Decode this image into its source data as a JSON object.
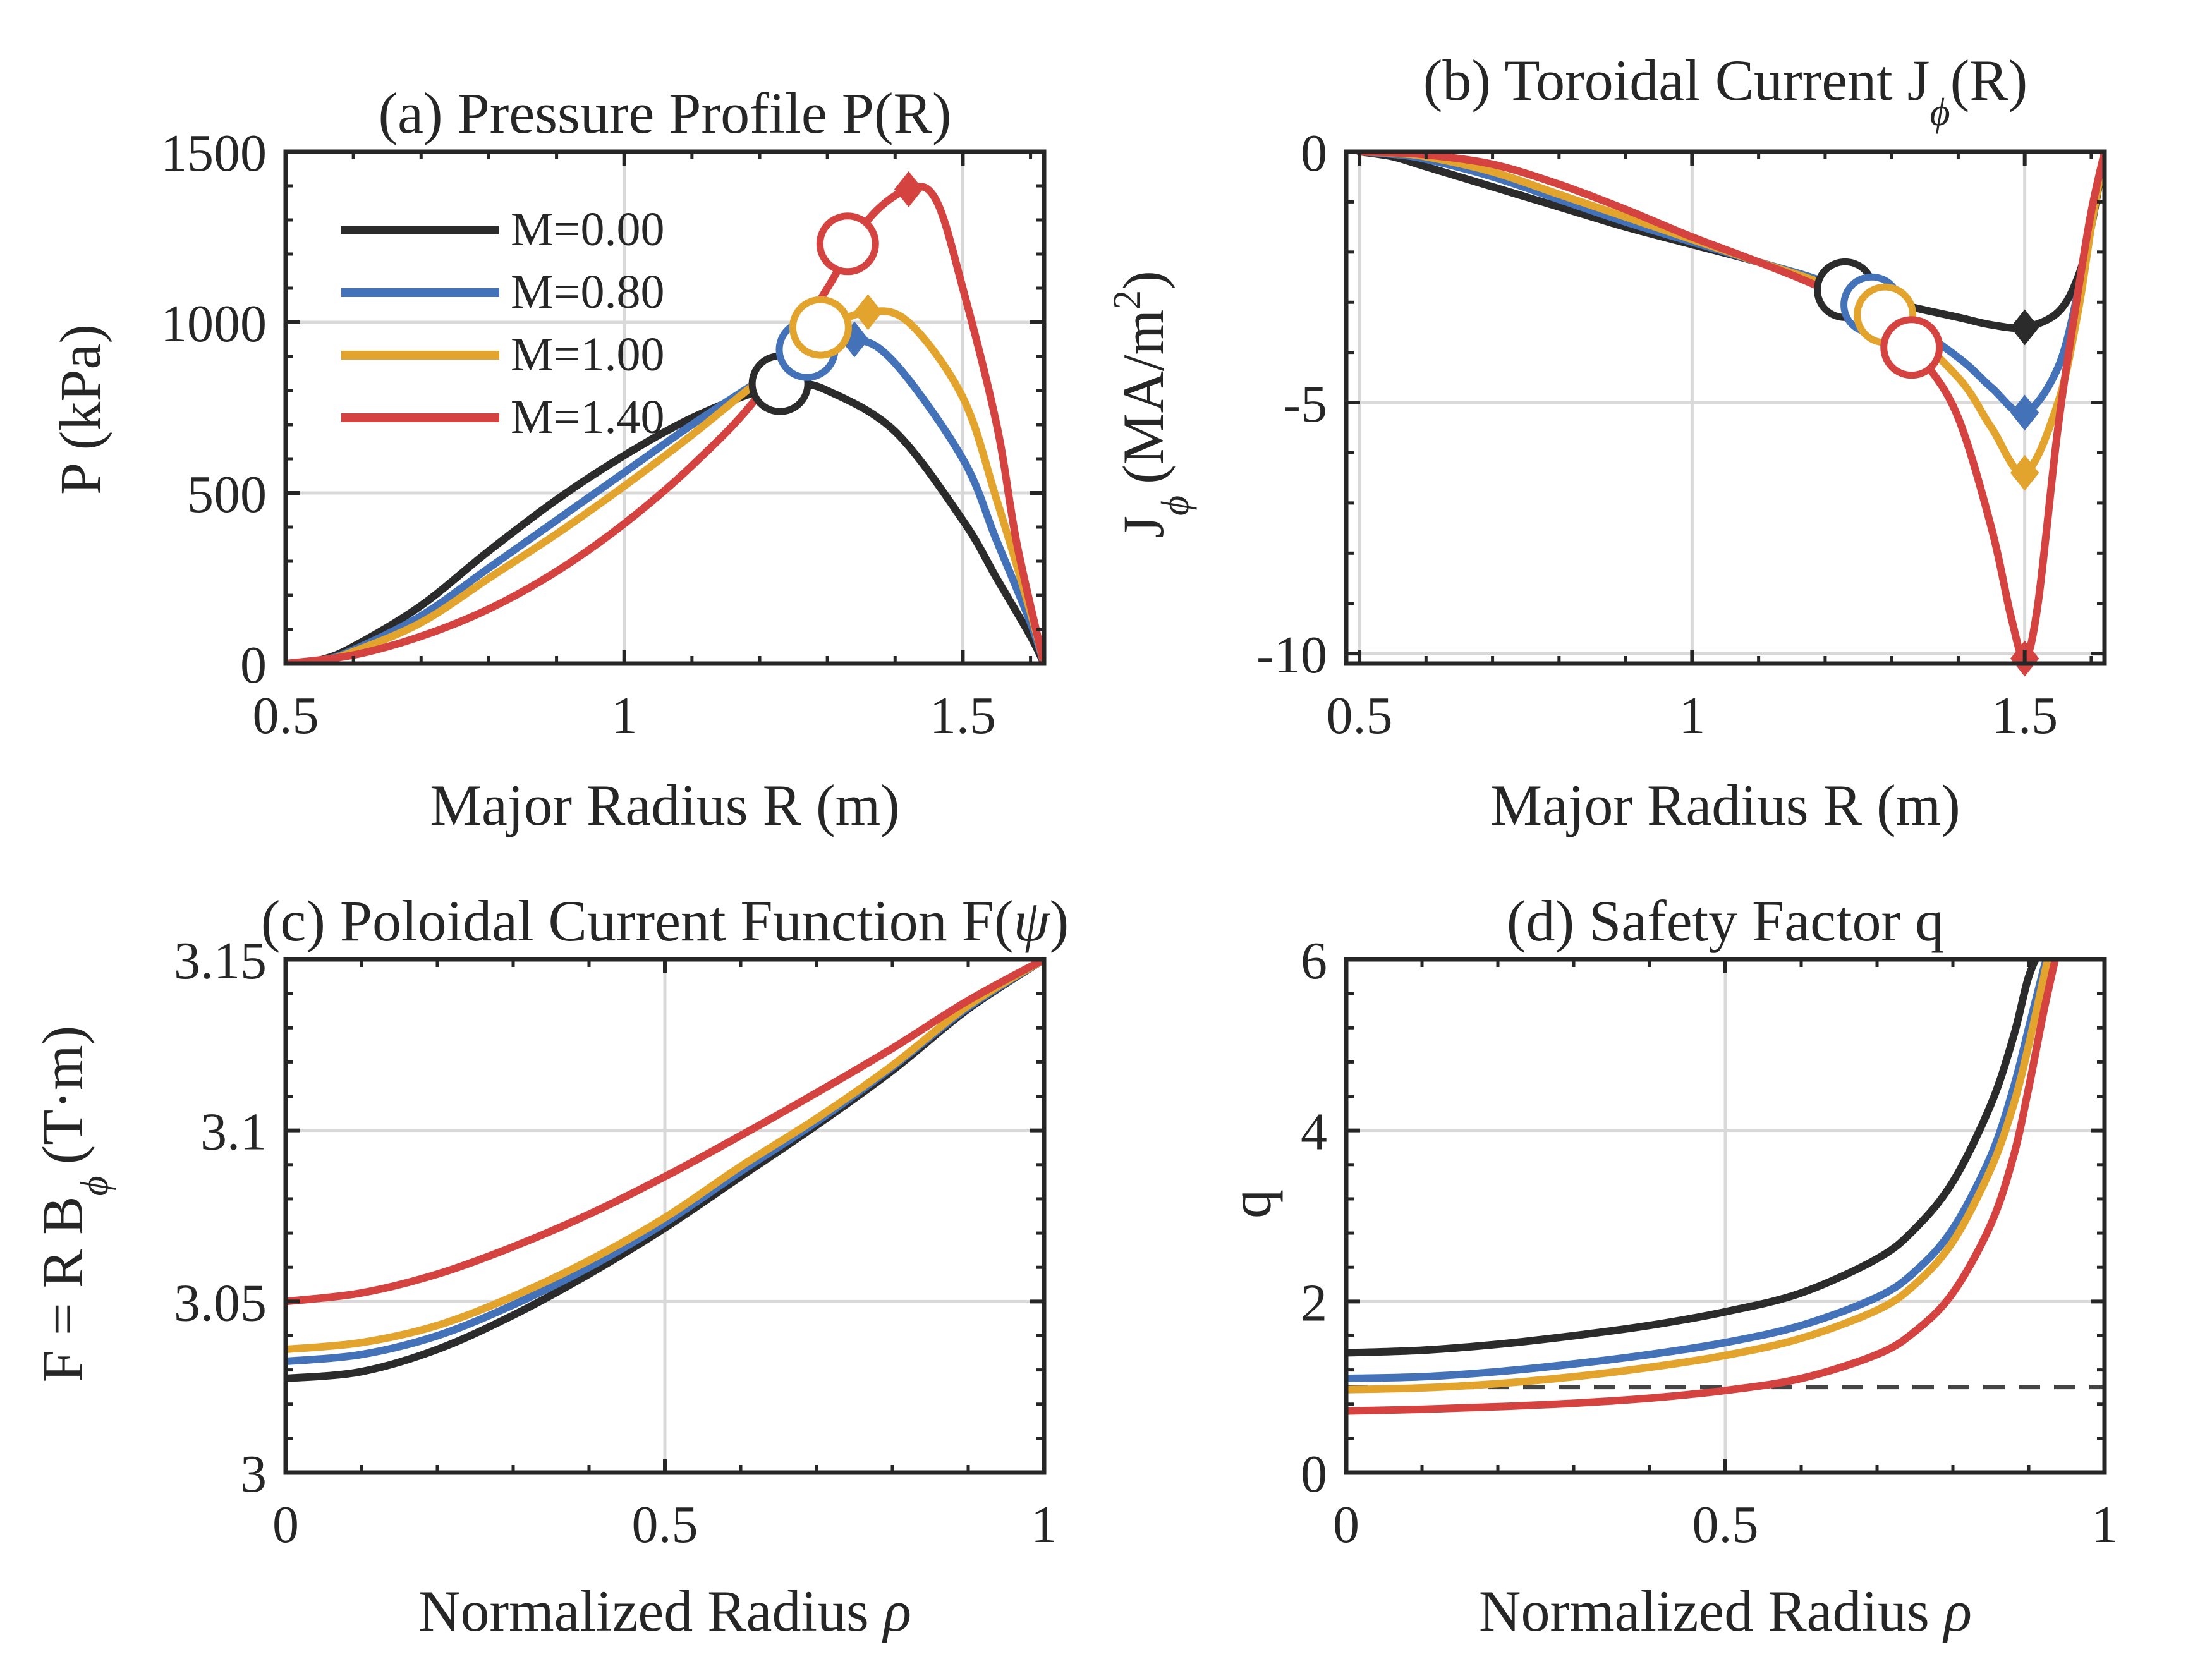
{
  "figure": {
    "background": "#ffffff",
    "axis_color": "#262626",
    "grid_color": "#d9d9d9"
  },
  "legend": {
    "entries": [
      {
        "label": "M=0.00",
        "color": "#2b2b2b"
      },
      {
        "label": "M=0.80",
        "color": "#4472b8"
      },
      {
        "label": "M=1.00",
        "color": "#e3a42e"
      },
      {
        "label": "M=1.40",
        "color": "#d4433f"
      }
    ]
  },
  "chart_data": [
    {
      "id": "a",
      "type": "line",
      "title": "(a) Pressure Profile P(R)",
      "xlabel": "Major Radius R (m)",
      "ylabel": "P (kPa)",
      "xlim": [
        0.5,
        1.62
      ],
      "ylim": [
        0,
        1500
      ],
      "xticks": [
        0.5,
        1,
        1.5
      ],
      "xtick_labels": [
        "0.5",
        "1",
        "1.5"
      ],
      "yticks": [
        0,
        500,
        1000,
        1500
      ],
      "ytick_labels": [
        "0",
        "500",
        "1000",
        "1500"
      ],
      "grid": true,
      "series": [
        {
          "name": "M=0.00",
          "color": "#2b2b2b",
          "x": [
            0.5,
            0.55,
            0.6,
            0.7,
            0.8,
            0.9,
            1.0,
            1.1,
            1.2,
            1.25,
            1.3,
            1.4,
            1.5,
            1.55,
            1.6,
            1.62
          ],
          "y": [
            0,
            10,
            50,
            170,
            330,
            480,
            610,
            720,
            800,
            820,
            800,
            680,
            420,
            250,
            80,
            0
          ],
          "circle": [
            1.23,
            820
          ],
          "diamond": [
            1.23,
            820
          ]
        },
        {
          "name": "M=0.80",
          "color": "#4472b8",
          "x": [
            0.5,
            0.55,
            0.6,
            0.7,
            0.8,
            0.9,
            1.0,
            1.1,
            1.2,
            1.27,
            1.34,
            1.4,
            1.5,
            1.55,
            1.6,
            1.62
          ],
          "y": [
            0,
            8,
            40,
            140,
            280,
            420,
            560,
            700,
            830,
            920,
            950,
            880,
            600,
            360,
            120,
            0
          ],
          "circle": [
            1.27,
            920
          ],
          "diamond": [
            1.34,
            950
          ]
        },
        {
          "name": "M=1.00",
          "color": "#e3a42e",
          "x": [
            0.5,
            0.55,
            0.6,
            0.7,
            0.8,
            0.9,
            1.0,
            1.1,
            1.2,
            1.3,
            1.36,
            1.42,
            1.5,
            1.55,
            1.6,
            1.62
          ],
          "y": [
            0,
            6,
            35,
            120,
            250,
            380,
            520,
            670,
            830,
            980,
            1030,
            1000,
            780,
            480,
            150,
            0
          ],
          "circle": [
            1.29,
            985
          ],
          "diamond": [
            1.36,
            1030
          ]
        },
        {
          "name": "M=1.40",
          "color": "#d4433f",
          "x": [
            0.5,
            0.6,
            0.7,
            0.8,
            0.9,
            1.0,
            1.1,
            1.2,
            1.3,
            1.36,
            1.42,
            1.46,
            1.5,
            1.55,
            1.58,
            1.62
          ],
          "y": [
            0,
            25,
            80,
            160,
            270,
            410,
            580,
            790,
            1100,
            1300,
            1390,
            1360,
            1100,
            700,
            350,
            0
          ],
          "circle": [
            1.33,
            1230
          ],
          "diamond": [
            1.42,
            1390
          ]
        }
      ]
    },
    {
      "id": "b",
      "type": "line",
      "title": "(b) Toroidal Current J",
      "title_sub": "ϕ",
      "title_tail": "(R)",
      "xlabel": "Major Radius R (m)",
      "ylabel": "J",
      "ylabel_sub": "ϕ",
      "ylabel_tail": "(MA/m",
      "ylabel_sup": "2",
      "ylabel_close": ")",
      "xlim": [
        0.48,
        1.62
      ],
      "ylim": [
        -10.2,
        0
      ],
      "xticks": [
        0.5,
        1,
        1.5
      ],
      "xtick_labels": [
        "0.5",
        "1",
        "1.5"
      ],
      "yticks": [
        0,
        -5,
        -10
      ],
      "ytick_labels": [
        "0",
        "-5",
        "-10"
      ],
      "grid": true,
      "series": [
        {
          "name": "M=0.00",
          "color": "#2b2b2b",
          "x": [
            0.5,
            0.55,
            0.6,
            0.7,
            0.8,
            0.9,
            1.0,
            1.1,
            1.2,
            1.3,
            1.4,
            1.45,
            1.5,
            1.55,
            1.58,
            1.6,
            1.62
          ],
          "y": [
            0,
            -0.1,
            -0.3,
            -0.7,
            -1.1,
            -1.5,
            -1.85,
            -2.2,
            -2.6,
            -3.0,
            -3.3,
            -3.45,
            -3.5,
            -3.2,
            -2.5,
            -1.5,
            0
          ],
          "circle": [
            1.23,
            -2.75
          ],
          "diamond": [
            1.5,
            -3.5
          ]
        },
        {
          "name": "M=0.80",
          "color": "#4472b8",
          "x": [
            0.5,
            0.55,
            0.6,
            0.7,
            0.8,
            0.9,
            1.0,
            1.1,
            1.2,
            1.3,
            1.4,
            1.45,
            1.5,
            1.55,
            1.58,
            1.6,
            1.62
          ],
          "y": [
            0,
            -0.05,
            -0.15,
            -0.5,
            -0.95,
            -1.4,
            -1.8,
            -2.2,
            -2.6,
            -3.2,
            -4.1,
            -4.7,
            -5.2,
            -4.3,
            -2.8,
            -1.4,
            0
          ],
          "circle": [
            1.27,
            -3.05
          ],
          "diamond": [
            1.5,
            -5.2
          ]
        },
        {
          "name": "M=1.00",
          "color": "#e3a42e",
          "x": [
            0.5,
            0.55,
            0.6,
            0.7,
            0.8,
            0.9,
            1.0,
            1.1,
            1.2,
            1.3,
            1.4,
            1.45,
            1.5,
            1.55,
            1.58,
            1.6,
            1.62
          ],
          "y": [
            0,
            -0.03,
            -0.1,
            -0.4,
            -0.85,
            -1.3,
            -1.75,
            -2.2,
            -2.65,
            -3.3,
            -4.5,
            -5.5,
            -6.4,
            -5.0,
            -3.2,
            -1.5,
            0
          ],
          "circle": [
            1.29,
            -3.25
          ],
          "diamond": [
            1.5,
            -6.4
          ]
        },
        {
          "name": "M=1.40",
          "color": "#d4433f",
          "x": [
            0.5,
            0.55,
            0.6,
            0.7,
            0.8,
            0.9,
            1.0,
            1.1,
            1.2,
            1.3,
            1.35,
            1.4,
            1.45,
            1.48,
            1.5,
            1.52,
            1.55,
            1.58,
            1.6,
            1.62
          ],
          "y": [
            0,
            -0.02,
            -0.06,
            -0.25,
            -0.65,
            -1.15,
            -1.7,
            -2.2,
            -2.75,
            -3.5,
            -4.2,
            -5.3,
            -7.5,
            -9.3,
            -10.1,
            -9.0,
            -5.5,
            -2.8,
            -1.2,
            0
          ],
          "circle": [
            1.33,
            -3.9
          ],
          "diamond": [
            1.5,
            -10.1
          ]
        }
      ]
    },
    {
      "id": "c",
      "type": "line",
      "title": "(c) Poloidal Current Function F(",
      "title_italic": "ψ",
      "title_tail": ")",
      "xlabel": "Normalized Radius ",
      "xlabel_italic": "ρ",
      "ylabel": "F = R B",
      "ylabel_sub": "ϕ",
      "ylabel_tail": "(T·m)",
      "xlim": [
        0,
        1
      ],
      "ylim": [
        3.0,
        3.15
      ],
      "xticks": [
        0,
        0.5,
        1
      ],
      "xtick_labels": [
        "0",
        "0.5",
        "1"
      ],
      "yticks": [
        3.0,
        3.05,
        3.1,
        3.15
      ],
      "ytick_labels": [
        "3",
        "3.05",
        "3.1",
        "3.15"
      ],
      "grid": true,
      "series": [
        {
          "name": "M=0.00",
          "color": "#2b2b2b",
          "x": [
            0,
            0.1,
            0.2,
            0.3,
            0.4,
            0.5,
            0.6,
            0.7,
            0.8,
            0.9,
            1.0
          ],
          "y": [
            3.0275,
            3.0295,
            3.036,
            3.046,
            3.058,
            3.0715,
            3.0865,
            3.1015,
            3.1175,
            3.1355,
            3.15
          ]
        },
        {
          "name": "M=0.80",
          "color": "#4472b8",
          "x": [
            0,
            0.1,
            0.2,
            0.3,
            0.4,
            0.5,
            0.6,
            0.7,
            0.8,
            0.9,
            1.0
          ],
          "y": [
            3.0325,
            3.0345,
            3.04,
            3.049,
            3.06,
            3.073,
            3.088,
            3.1025,
            3.1185,
            3.136,
            3.15
          ]
        },
        {
          "name": "M=1.00",
          "color": "#e3a42e",
          "x": [
            0,
            0.1,
            0.2,
            0.3,
            0.4,
            0.5,
            0.6,
            0.7,
            0.8,
            0.9,
            1.0
          ],
          "y": [
            3.036,
            3.038,
            3.043,
            3.0515,
            3.062,
            3.0745,
            3.0895,
            3.1035,
            3.119,
            3.1365,
            3.15
          ]
        },
        {
          "name": "M=1.40",
          "color": "#d4433f",
          "x": [
            0,
            0.1,
            0.2,
            0.3,
            0.4,
            0.5,
            0.6,
            0.7,
            0.8,
            0.9,
            1.0
          ],
          "y": [
            3.05,
            3.0525,
            3.058,
            3.066,
            3.0755,
            3.0865,
            3.0985,
            3.111,
            3.124,
            3.138,
            3.15
          ]
        }
      ]
    },
    {
      "id": "d",
      "type": "line",
      "title": "(d) Safety Factor q",
      "xlabel": "Normalized Radius ",
      "xlabel_italic": "ρ",
      "ylabel": "q",
      "xlim": [
        0,
        1
      ],
      "ylim": [
        0,
        6
      ],
      "xticks": [
        0,
        0.5,
        1
      ],
      "xtick_labels": [
        "0",
        "0.5",
        "1"
      ],
      "yticks": [
        0,
        2,
        4,
        6
      ],
      "ytick_labels": [
        "0",
        "2",
        "4",
        "6"
      ],
      "grid": true,
      "reference_line": {
        "y": 1,
        "style": "dashed",
        "color": "#444444"
      },
      "series": [
        {
          "name": "M=0.00",
          "color": "#2b2b2b",
          "x": [
            0,
            0.1,
            0.2,
            0.3,
            0.4,
            0.5,
            0.6,
            0.7,
            0.75,
            0.8,
            0.85,
            0.88,
            0.9,
            0.92
          ],
          "y": [
            1.4,
            1.43,
            1.5,
            1.6,
            1.72,
            1.88,
            2.1,
            2.5,
            2.85,
            3.4,
            4.3,
            5.1,
            5.8,
            6.2
          ]
        },
        {
          "name": "M=0.80",
          "color": "#4472b8",
          "x": [
            0,
            0.1,
            0.2,
            0.3,
            0.4,
            0.5,
            0.6,
            0.7,
            0.75,
            0.8,
            0.85,
            0.88,
            0.9,
            0.92,
            0.93
          ],
          "y": [
            1.1,
            1.12,
            1.18,
            1.27,
            1.38,
            1.52,
            1.72,
            2.05,
            2.35,
            2.85,
            3.7,
            4.5,
            5.2,
            5.9,
            6.2
          ]
        },
        {
          "name": "M=1.00",
          "color": "#e3a42e",
          "x": [
            0,
            0.1,
            0.2,
            0.3,
            0.4,
            0.5,
            0.6,
            0.7,
            0.75,
            0.8,
            0.85,
            0.88,
            0.9,
            0.92,
            0.93
          ],
          "y": [
            0.97,
            0.99,
            1.04,
            1.12,
            1.23,
            1.37,
            1.57,
            1.9,
            2.2,
            2.7,
            3.55,
            4.3,
            5.0,
            5.8,
            6.2
          ]
        },
        {
          "name": "M=1.40",
          "color": "#d4433f",
          "x": [
            0,
            0.1,
            0.2,
            0.3,
            0.4,
            0.5,
            0.6,
            0.7,
            0.75,
            0.8,
            0.85,
            0.88,
            0.9,
            0.92,
            0.94
          ],
          "y": [
            0.72,
            0.74,
            0.77,
            0.81,
            0.87,
            0.96,
            1.1,
            1.38,
            1.65,
            2.1,
            2.9,
            3.7,
            4.5,
            5.4,
            6.2
          ]
        }
      ]
    }
  ]
}
